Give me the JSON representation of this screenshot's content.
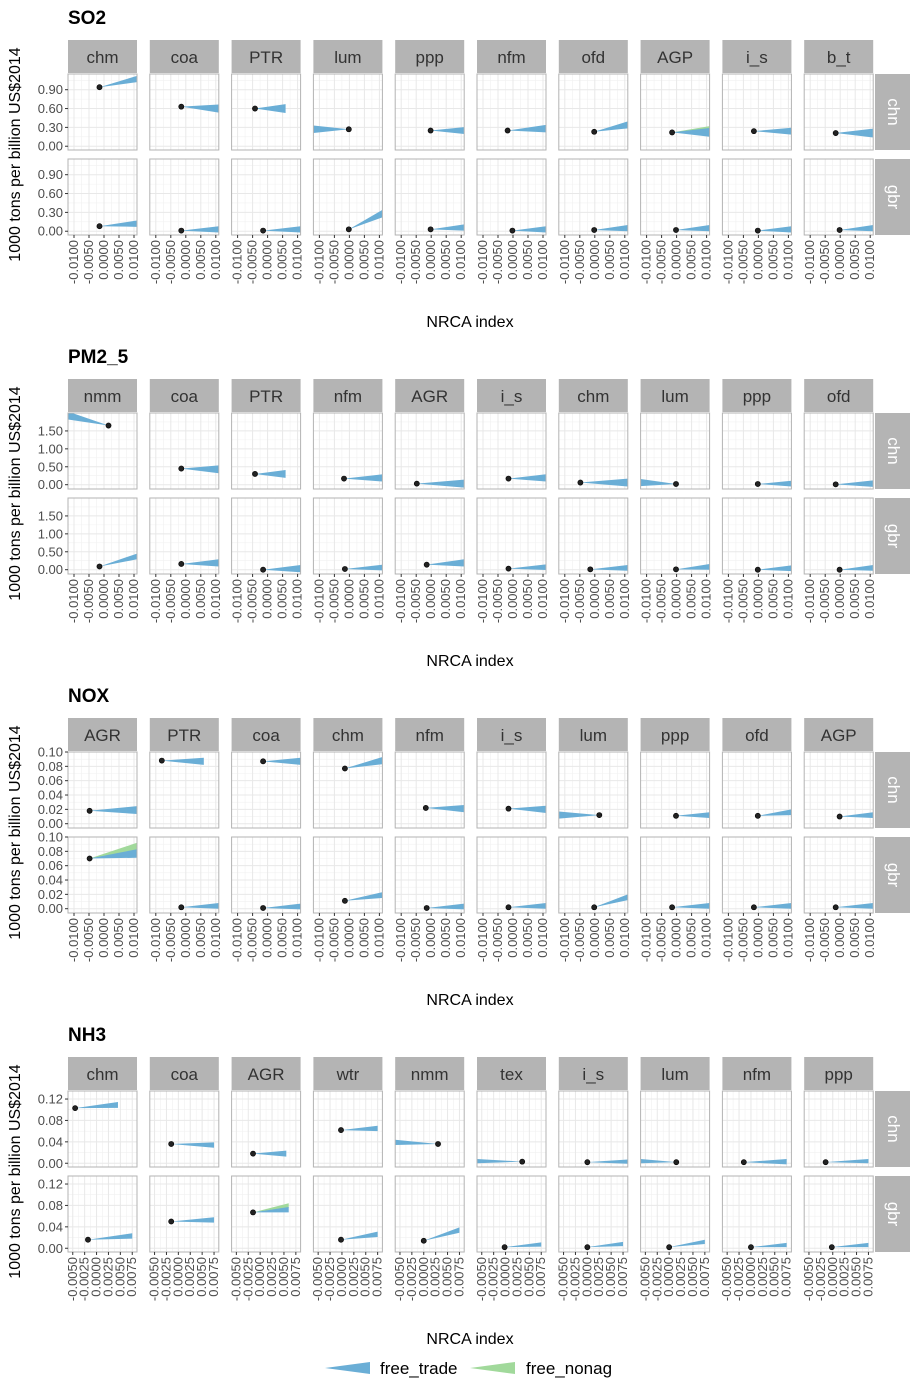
{
  "colors": {
    "free_trade": "#6aaed6",
    "free_nonag": "#a1d99b",
    "strip": "#b4b4b4",
    "panel_border": "#b3b3b3",
    "grid": "#e8e8e8",
    "point": "#000000"
  },
  "chart_data": {
    "type": "line",
    "facet_rows": [
      "chn",
      "gbr"
    ],
    "legend": {
      "placement": "bottom",
      "entries": [
        "free_trade",
        "free_nonag"
      ]
    },
    "panels": [
      {
        "title": "SO2",
        "xlabel": "NRCA index",
        "ylabel": "1000 tons per billion US$2014",
        "xlim": [
          -0.012,
          0.011
        ],
        "xticks": [
          "-0.0100",
          "-0.0050",
          "0.0000",
          "0.0050",
          "0.0100"
        ],
        "xtickvals": [
          -0.01,
          -0.005,
          0,
          0.005,
          0.01
        ],
        "ylim": [
          -0.06,
          1.15
        ],
        "yticks": [
          "0.00",
          "0.30",
          "0.60",
          "0.90"
        ],
        "ytickvals": [
          0,
          0.3,
          0.6,
          0.9
        ],
        "sectors": [
          "chm",
          "coa",
          "PTR",
          "lum",
          "ppp",
          "nfm",
          "ofd",
          "AGP",
          "i_s",
          "b_t"
        ],
        "series": {
          "chn": [
            {
              "x0": -0.0015,
              "y0": 0.94,
              "x1": 0.011,
              "y1": 1.07,
              "w": 0.1
            },
            {
              "x0": -0.0015,
              "y0": 0.63,
              "x1": 0.011,
              "y1": 0.6,
              "w": 0.13
            },
            {
              "x0": -0.0042,
              "y0": 0.6,
              "x1": 0.006,
              "y1": 0.6,
              "w": 0.14
            },
            {
              "x0": -0.0002,
              "y0": 0.27,
              "x1": -0.012,
              "y1": 0.27,
              "w": 0.12
            },
            {
              "x0": -0.0002,
              "y0": 0.25,
              "x1": 0.011,
              "y1": 0.25,
              "w": 0.11
            },
            {
              "x0": -0.0018,
              "y0": 0.25,
              "x1": 0.011,
              "y1": 0.28,
              "w": 0.12
            },
            {
              "x0": -0.0002,
              "y0": 0.23,
              "x1": 0.011,
              "y1": 0.34,
              "w": 0.11
            },
            {
              "x0": -0.0015,
              "y0": 0.22,
              "x1": 0.011,
              "y1": 0.22,
              "w": 0.14,
              "nonag": {
                "y1": 0.27,
                "w": 0.1
              }
            },
            {
              "x0": -0.0015,
              "y0": 0.24,
              "x1": 0.011,
              "y1": 0.24,
              "w": 0.11
            },
            {
              "x0": -0.0015,
              "y0": 0.21,
              "x1": 0.011,
              "y1": 0.21,
              "w": 0.14
            }
          ],
          "gbr": [
            {
              "x0": -0.0015,
              "y0": 0.08,
              "x1": 0.011,
              "y1": 0.12,
              "w": 0.1
            },
            {
              "x0": -0.0015,
              "y0": 0.01,
              "x1": 0.011,
              "y1": 0.03,
              "w": 0.1
            },
            {
              "x0": -0.0015,
              "y0": 0.01,
              "x1": 0.011,
              "y1": 0.03,
              "w": 0.1
            },
            {
              "x0": -0.0002,
              "y0": 0.03,
              "x1": 0.011,
              "y1": 0.28,
              "w": 0.12
            },
            {
              "x0": -0.0002,
              "y0": 0.03,
              "x1": 0.011,
              "y1": 0.06,
              "w": 0.1
            },
            {
              "x0": -0.0002,
              "y0": 0.01,
              "x1": 0.011,
              "y1": 0.03,
              "w": 0.1
            },
            {
              "x0": -0.0002,
              "y0": 0.02,
              "x1": 0.011,
              "y1": 0.05,
              "w": 0.1
            },
            {
              "x0": -0.0002,
              "y0": 0.02,
              "x1": 0.011,
              "y1": 0.05,
              "w": 0.1
            },
            {
              "x0": -0.0002,
              "y0": 0.01,
              "x1": 0.011,
              "y1": 0.03,
              "w": 0.1
            },
            {
              "x0": -0.0002,
              "y0": 0.02,
              "x1": 0.011,
              "y1": 0.05,
              "w": 0.1
            }
          ]
        }
      },
      {
        "title": "PM2_5",
        "xlabel": "NRCA index",
        "ylabel": "1000 tons per billion US$2014",
        "xlim": [
          -0.012,
          0.011
        ],
        "xticks": [
          "-0.0100",
          "-0.0050",
          "0.0000",
          "0.0050",
          "0.0100"
        ],
        "xtickvals": [
          -0.01,
          -0.005,
          0,
          0.005,
          0.01
        ],
        "ylim": [
          -0.12,
          2.0
        ],
        "yticks": [
          "0.00",
          "0.50",
          "1.00",
          "1.50"
        ],
        "ytickvals": [
          0,
          0.5,
          1.0,
          1.5
        ],
        "sectors": [
          "nmm",
          "coa",
          "PTR",
          "nfm",
          "AGR",
          "i_s",
          "chm",
          "lum",
          "ppp",
          "ofd"
        ],
        "series": {
          "chn": [
            {
              "x0": 0.0015,
              "y0": 1.65,
              "x1": -0.012,
              "y1": 1.93,
              "w": 0.22
            },
            {
              "x0": -0.0015,
              "y0": 0.45,
              "x1": 0.011,
              "y1": 0.43,
              "w": 0.22
            },
            {
              "x0": -0.0042,
              "y0": 0.3,
              "x1": 0.006,
              "y1": 0.3,
              "w": 0.22
            },
            {
              "x0": -0.0018,
              "y0": 0.17,
              "x1": 0.011,
              "y1": 0.19,
              "w": 0.2
            },
            {
              "x0": -0.0048,
              "y0": 0.03,
              "x1": 0.011,
              "y1": 0.03,
              "w": 0.22
            },
            {
              "x0": -0.0015,
              "y0": 0.17,
              "x1": 0.011,
              "y1": 0.19,
              "w": 0.2
            },
            {
              "x0": -0.0048,
              "y0": 0.06,
              "x1": 0.011,
              "y1": 0.06,
              "w": 0.22
            },
            {
              "x0": -0.0002,
              "y0": 0.02,
              "x1": -0.012,
              "y1": 0.06,
              "w": 0.2
            },
            {
              "x0": -0.0002,
              "y0": 0.02,
              "x1": 0.011,
              "y1": 0.03,
              "w": 0.16
            },
            {
              "x0": -0.0015,
              "y0": 0.01,
              "x1": 0.011,
              "y1": 0.03,
              "w": 0.18
            }
          ],
          "gbr": [
            {
              "x0": -0.0015,
              "y0": 0.09,
              "x1": 0.011,
              "y1": 0.37,
              "w": 0.16
            },
            {
              "x0": -0.0015,
              "y0": 0.16,
              "x1": 0.011,
              "y1": 0.19,
              "w": 0.2
            },
            {
              "x0": -0.0015,
              "y0": 0.0,
              "x1": 0.011,
              "y1": 0.03,
              "w": 0.2
            },
            {
              "x0": -0.0015,
              "y0": 0.02,
              "x1": 0.011,
              "y1": 0.06,
              "w": 0.16
            },
            {
              "x0": -0.0015,
              "y0": 0.14,
              "x1": 0.011,
              "y1": 0.19,
              "w": 0.2
            },
            {
              "x0": -0.0015,
              "y0": 0.03,
              "x1": 0.011,
              "y1": 0.07,
              "w": 0.16
            },
            {
              "x0": -0.0015,
              "y0": 0.01,
              "x1": 0.011,
              "y1": 0.05,
              "w": 0.16
            },
            {
              "x0": -0.0002,
              "y0": 0.01,
              "x1": 0.011,
              "y1": 0.08,
              "w": 0.16
            },
            {
              "x0": -0.0002,
              "y0": 0.0,
              "x1": 0.011,
              "y1": 0.04,
              "w": 0.16
            },
            {
              "x0": -0.0002,
              "y0": 0.0,
              "x1": 0.011,
              "y1": 0.05,
              "w": 0.16
            }
          ]
        }
      },
      {
        "title": "NOX",
        "xlabel": "NRCA index",
        "ylabel": "1000 tons per billion US$2014",
        "xlim": [
          -0.012,
          0.011
        ],
        "xticks": [
          "-0.0100",
          "-0.0050",
          "0.0000",
          "0.0050",
          "0.0100"
        ],
        "xtickvals": [
          -0.01,
          -0.005,
          0,
          0.005,
          0.01
        ],
        "ylim": [
          -0.006,
          0.1
        ],
        "yticks": [
          "0.00",
          "0.02",
          "0.04",
          "0.06",
          "0.08",
          "0.10"
        ],
        "ytickvals": [
          0,
          0.02,
          0.04,
          0.06,
          0.08,
          0.1
        ],
        "sectors": [
          "AGR",
          "PTR",
          "coa",
          "chm",
          "nfm",
          "i_s",
          "lum",
          "ppp",
          "ofd",
          "AGP"
        ],
        "series": {
          "chn": [
            {
              "x0": -0.0048,
              "y0": 0.018,
              "x1": 0.011,
              "y1": 0.019,
              "w": 0.011
            },
            {
              "x0": -0.008,
              "y0": 0.088,
              "x1": 0.006,
              "y1": 0.087,
              "w": 0.01
            },
            {
              "x0": -0.0015,
              "y0": 0.087,
              "x1": 0.011,
              "y1": 0.087,
              "w": 0.01
            },
            {
              "x0": -0.0015,
              "y0": 0.077,
              "x1": 0.011,
              "y1": 0.088,
              "w": 0.01
            },
            {
              "x0": -0.0018,
              "y0": 0.022,
              "x1": 0.011,
              "y1": 0.021,
              "w": 0.01
            },
            {
              "x0": -0.0015,
              "y0": 0.021,
              "x1": 0.011,
              "y1": 0.02,
              "w": 0.01
            },
            {
              "x0": 0.0015,
              "y0": 0.012,
              "x1": -0.012,
              "y1": 0.012,
              "w": 0.01
            },
            {
              "x0": -0.0002,
              "y0": 0.011,
              "x1": 0.011,
              "y1": 0.012,
              "w": 0.008
            },
            {
              "x0": -0.0002,
              "y0": 0.011,
              "x1": 0.011,
              "y1": 0.016,
              "w": 0.008
            },
            {
              "x0": -0.0002,
              "y0": 0.01,
              "x1": 0.011,
              "y1": 0.012,
              "w": 0.008
            }
          ],
          "gbr": [
            {
              "x0": -0.0048,
              "y0": 0.07,
              "x1": 0.011,
              "y1": 0.077,
              "w": 0.012,
              "nonag": {
                "y1": 0.086,
                "w": 0.012
              }
            },
            {
              "x0": -0.0015,
              "y0": 0.002,
              "x1": 0.011,
              "y1": 0.004,
              "w": 0.008
            },
            {
              "x0": -0.0015,
              "y0": 0.001,
              "x1": 0.011,
              "y1": 0.003,
              "w": 0.008
            },
            {
              "x0": -0.0015,
              "y0": 0.011,
              "x1": 0.011,
              "y1": 0.019,
              "w": 0.008
            },
            {
              "x0": -0.0015,
              "y0": 0.001,
              "x1": 0.011,
              "y1": 0.003,
              "w": 0.008
            },
            {
              "x0": -0.0015,
              "y0": 0.002,
              "x1": 0.011,
              "y1": 0.004,
              "w": 0.008
            },
            {
              "x0": -0.0002,
              "y0": 0.002,
              "x1": 0.011,
              "y1": 0.016,
              "w": 0.008
            },
            {
              "x0": -0.0015,
              "y0": 0.002,
              "x1": 0.011,
              "y1": 0.004,
              "w": 0.008
            },
            {
              "x0": -0.0015,
              "y0": 0.002,
              "x1": 0.011,
              "y1": 0.004,
              "w": 0.008
            },
            {
              "x0": -0.0015,
              "y0": 0.002,
              "x1": 0.011,
              "y1": 0.004,
              "w": 0.008
            }
          ]
        }
      },
      {
        "title": "NH3",
        "xlabel": "NRCA index",
        "ylabel": "1000 tons per billion US$2014",
        "xlim": [
          -0.006,
          0.0085
        ],
        "xticks": [
          "-0.0050",
          "-0.0025",
          "0.0000",
          "0.0025",
          "0.0050",
          "0.0075"
        ],
        "xtickvals": [
          -0.005,
          -0.0025,
          0,
          0.0025,
          0.005,
          0.0075
        ],
        "ylim": [
          -0.007,
          0.135
        ],
        "yticks": [
          "0.00",
          "0.04",
          "0.08",
          "0.12"
        ],
        "ytickvals": [
          0,
          0.04,
          0.08,
          0.12
        ],
        "sectors": [
          "chm",
          "coa",
          "AGR",
          "wtr",
          "nmm",
          "tex",
          "i_s",
          "lum",
          "nfm",
          "ppp"
        ],
        "series": {
          "chn": [
            {
              "x0": -0.0045,
              "y0": 0.103,
              "x1": 0.0045,
              "y1": 0.109,
              "w": 0.011
            },
            {
              "x0": -0.0015,
              "y0": 0.036,
              "x1": 0.0075,
              "y1": 0.034,
              "w": 0.01
            },
            {
              "x0": -0.0015,
              "y0": 0.018,
              "x1": 0.0055,
              "y1": 0.018,
              "w": 0.011
            },
            {
              "x0": -0.0002,
              "y0": 0.062,
              "x1": 0.0075,
              "y1": 0.065,
              "w": 0.01
            },
            {
              "x0": 0.003,
              "y0": 0.036,
              "x1": -0.006,
              "y1": 0.039,
              "w": 0.01
            },
            {
              "x0": 0.0035,
              "y0": 0.003,
              "x1": -0.006,
              "y1": 0.004,
              "w": 0.008
            },
            {
              "x0": 0.0,
              "y0": 0.002,
              "x1": 0.0085,
              "y1": 0.003,
              "w": 0.008
            },
            {
              "x0": 0.0015,
              "y0": 0.002,
              "x1": -0.006,
              "y1": 0.004,
              "w": 0.008
            },
            {
              "x0": -0.0015,
              "y0": 0.002,
              "x1": 0.0075,
              "y1": 0.003,
              "w": 0.01
            },
            {
              "x0": -0.0015,
              "y0": 0.002,
              "x1": 0.0075,
              "y1": 0.004,
              "w": 0.008
            }
          ],
          "gbr": [
            {
              "x0": -0.0018,
              "y0": 0.016,
              "x1": 0.0075,
              "y1": 0.023,
              "w": 0.01
            },
            {
              "x0": -0.0015,
              "y0": 0.05,
              "x1": 0.0075,
              "y1": 0.053,
              "w": 0.01
            },
            {
              "x0": -0.0015,
              "y0": 0.067,
              "x1": 0.006,
              "y1": 0.072,
              "w": 0.01,
              "nonag": {
                "y1": 0.08,
                "w": 0.008
              }
            },
            {
              "x0": -0.0002,
              "y0": 0.016,
              "x1": 0.0075,
              "y1": 0.026,
              "w": 0.01
            },
            {
              "x0": 0.0,
              "y0": 0.014,
              "x1": 0.0075,
              "y1": 0.034,
              "w": 0.01
            },
            {
              "x0": -0.0002,
              "y0": 0.002,
              "x1": 0.0075,
              "y1": 0.007,
              "w": 0.008
            },
            {
              "x0": 0.0,
              "y0": 0.002,
              "x1": 0.0075,
              "y1": 0.008,
              "w": 0.008
            },
            {
              "x0": 0.0,
              "y0": 0.002,
              "x1": 0.0075,
              "y1": 0.012,
              "w": 0.008
            },
            {
              "x0": 0.0,
              "y0": 0.002,
              "x1": 0.0075,
              "y1": 0.006,
              "w": 0.008
            },
            {
              "x0": -0.0002,
              "y0": 0.002,
              "x1": 0.0075,
              "y1": 0.006,
              "w": 0.008
            }
          ]
        }
      }
    ]
  }
}
